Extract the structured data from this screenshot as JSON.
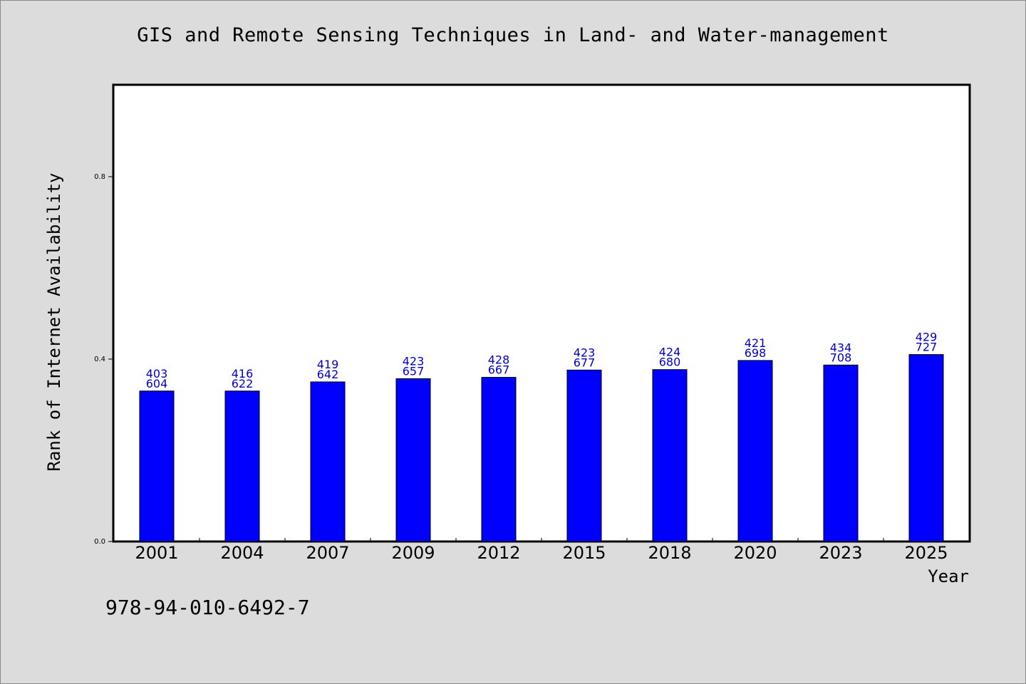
{
  "chart_data": {
    "type": "bar",
    "title": "GIS and Remote Sensing Techniques in Land- and Water-management",
    "xlabel": "Year",
    "ylabel": "Rank of Internet Availability",
    "categories": [
      "2001",
      "2004",
      "2007",
      "2009",
      "2012",
      "2015",
      "2018",
      "2020",
      "2023",
      "2025"
    ],
    "values": [
      0.33,
      0.33,
      0.35,
      0.357,
      0.36,
      0.376,
      0.377,
      0.397,
      0.387,
      0.41
    ],
    "data_labels_top": [
      "403",
      "416",
      "419",
      "423",
      "428",
      "423",
      "424",
      "421",
      "434",
      "429"
    ],
    "data_labels_bottom": [
      "604",
      "622",
      "642",
      "657",
      "667",
      "677",
      "680",
      "698",
      "708",
      "727"
    ],
    "ylim": [
      0,
      1.0
    ],
    "yticks": [
      0.0,
      0.4,
      0.8
    ],
    "ytick_labels": [
      "0.0",
      "0.4",
      "0.8"
    ],
    "bar_color": "#0000ff",
    "label_color": "#0000cc",
    "grid": false,
    "legend": "none"
  },
  "footer": {
    "isbn": "978-94-010-6492-7"
  }
}
